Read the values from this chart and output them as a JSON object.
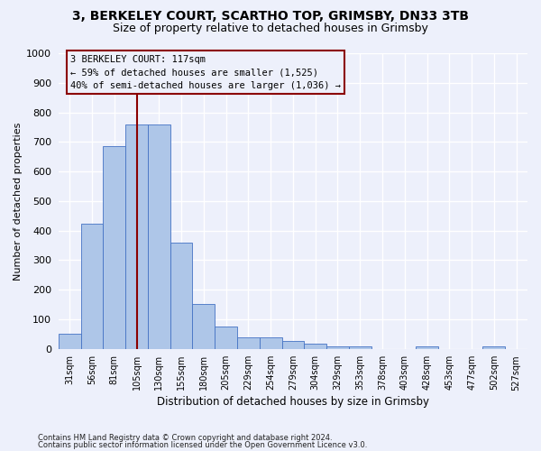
{
  "title1": "3, BERKELEY COURT, SCARTHO TOP, GRIMSBY, DN33 3TB",
  "title2": "Size of property relative to detached houses in Grimsby",
  "xlabel": "Distribution of detached houses by size in Grimsby",
  "ylabel": "Number of detached properties",
  "footnote1": "Contains HM Land Registry data © Crown copyright and database right 2024.",
  "footnote2": "Contains public sector information licensed under the Open Government Licence v3.0.",
  "categories": [
    "31sqm",
    "56sqm",
    "81sqm",
    "105sqm",
    "130sqm",
    "155sqm",
    "180sqm",
    "205sqm",
    "229sqm",
    "254sqm",
    "279sqm",
    "304sqm",
    "329sqm",
    "353sqm",
    "378sqm",
    "403sqm",
    "428sqm",
    "453sqm",
    "477sqm",
    "502sqm",
    "527sqm"
  ],
  "values": [
    52,
    422,
    685,
    760,
    760,
    360,
    153,
    75,
    40,
    38,
    27,
    18,
    10,
    10,
    0,
    0,
    10,
    0,
    0,
    10,
    0
  ],
  "bar_color": "#aec6e8",
  "bar_edge_color": "#4472c4",
  "vline_x": 3.0,
  "vline_color": "#8b0000",
  "annotation_line1": "3 BERKELEY COURT: 117sqm",
  "annotation_line2": "← 59% of detached houses are smaller (1,525)",
  "annotation_line3": "40% of semi-detached houses are larger (1,036) →",
  "annotation_box_edgecolor": "#8b0000",
  "ylim": [
    0,
    1000
  ],
  "yticks": [
    0,
    100,
    200,
    300,
    400,
    500,
    600,
    700,
    800,
    900,
    1000
  ],
  "bg_color": "#edf0fb",
  "grid_color": "#ffffff",
  "title1_fontsize": 10,
  "title2_fontsize": 9
}
